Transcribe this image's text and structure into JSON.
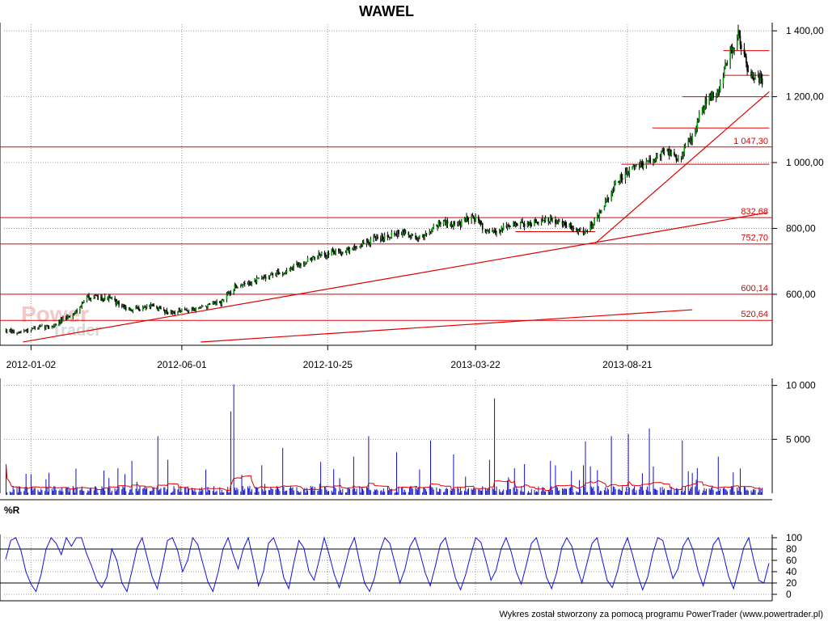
{
  "chart_data": [
    {
      "type": "candlestick",
      "title": "WAWEL",
      "x_labels": [
        "2012-01-02",
        "2012-06-01",
        "2012-10-25",
        "2013-03-22",
        "2013-08-21"
      ],
      "y_ticks": [
        600,
        800,
        1000,
        1200,
        1400
      ],
      "y_tick_labels": [
        "600,00",
        "800,00",
        "1 000,00",
        "1 200,00",
        "1 400,00"
      ],
      "ylim": [
        450,
        1420
      ],
      "grid": true,
      "price_path": [
        {
          "x": "2011-12-08",
          "y": 490
        },
        {
          "x": "2011-12-20",
          "y": 480
        },
        {
          "x": "2012-01-02",
          "y": 495
        },
        {
          "x": "2012-01-25",
          "y": 505
        },
        {
          "x": "2012-02-15",
          "y": 545
        },
        {
          "x": "2012-02-28",
          "y": 592
        },
        {
          "x": "2012-03-20",
          "y": 588
        },
        {
          "x": "2012-04-10",
          "y": 550
        },
        {
          "x": "2012-04-30",
          "y": 565
        },
        {
          "x": "2012-05-20",
          "y": 545
        },
        {
          "x": "2012-06-01",
          "y": 548
        },
        {
          "x": "2012-06-20",
          "y": 560
        },
        {
          "x": "2012-07-10",
          "y": 575
        },
        {
          "x": "2012-07-25",
          "y": 625
        },
        {
          "x": "2012-08-10",
          "y": 635
        },
        {
          "x": "2012-08-25",
          "y": 655
        },
        {
          "x": "2012-09-15",
          "y": 670
        },
        {
          "x": "2012-10-05",
          "y": 705
        },
        {
          "x": "2012-10-25",
          "y": 725
        },
        {
          "x": "2012-11-15",
          "y": 735
        },
        {
          "x": "2012-12-10",
          "y": 765
        },
        {
          "x": "2013-01-05",
          "y": 790
        },
        {
          "x": "2013-01-25",
          "y": 770
        },
        {
          "x": "2013-02-15",
          "y": 820
        },
        {
          "x": "2013-03-05",
          "y": 810
        },
        {
          "x": "2013-03-18",
          "y": 840
        },
        {
          "x": "2013-04-05",
          "y": 785
        },
        {
          "x": "2013-04-25",
          "y": 810
        },
        {
          "x": "2013-05-15",
          "y": 815
        },
        {
          "x": "2013-06-05",
          "y": 825
        },
        {
          "x": "2013-06-25",
          "y": 805
        },
        {
          "x": "2013-07-10",
          "y": 790
        },
        {
          "x": "2013-07-25",
          "y": 845
        },
        {
          "x": "2013-08-10",
          "y": 940
        },
        {
          "x": "2013-08-30",
          "y": 990
        },
        {
          "x": "2013-09-15",
          "y": 1005
        },
        {
          "x": "2013-09-28",
          "y": 1040
        },
        {
          "x": "2013-10-10",
          "y": 1010
        },
        {
          "x": "2013-10-25",
          "y": 1080
        },
        {
          "x": "2013-11-08",
          "y": 1190
        },
        {
          "x": "2013-11-20",
          "y": 1220
        },
        {
          "x": "2013-12-02",
          "y": 1330
        },
        {
          "x": "2013-12-10",
          "y": 1390
        },
        {
          "x": "2013-12-20",
          "y": 1280
        },
        {
          "x": "2014-01-05",
          "y": 1240
        }
      ],
      "support_resistance": [
        {
          "value": 1047.3,
          "label": "1 047,30"
        },
        {
          "value": 832.68,
          "label": "832,68"
        },
        {
          "value": 752.7,
          "label": "752,70"
        },
        {
          "value": 600.14,
          "label": "600,14"
        },
        {
          "value": 520.64,
          "label": "520,64"
        }
      ],
      "short_levels": [
        {
          "from": "2013-11-25",
          "to": "2014-01-10",
          "value": 1340
        },
        {
          "from": "2013-11-25",
          "to": "2014-01-10",
          "value": 1265
        },
        {
          "from": "2013-10-15",
          "to": "2014-01-10",
          "value": 1200
        },
        {
          "from": "2013-09-15",
          "to": "2014-01-10",
          "value": 1105
        },
        {
          "from": "2013-08-15",
          "to": "2014-01-10",
          "value": 995
        },
        {
          "from": "2013-05-01",
          "to": "2013-07-20",
          "value": 790
        }
      ],
      "trendlines": [
        {
          "from": {
            "x": "2011-12-25",
            "y": 455
          },
          "to": {
            "x": "2014-01-08",
            "y": 848
          }
        },
        {
          "from": {
            "x": "2012-06-20",
            "y": 455
          },
          "to": {
            "x": "2013-10-25",
            "y": 553
          }
        },
        {
          "from": {
            "x": "2013-07-20",
            "y": 755
          },
          "to": {
            "x": "2014-01-10",
            "y": 1215
          }
        }
      ],
      "watermark": [
        "Power",
        "Trader"
      ]
    },
    {
      "type": "bar",
      "name": "volume",
      "y_ticks": [
        5000,
        10000
      ],
      "y_tick_labels": [
        "5 000",
        "10 000"
      ],
      "ylim": [
        0,
        10500
      ],
      "grid": true,
      "spikes": [
        {
          "x": "2011-12-08",
          "value": 2700
        },
        {
          "x": "2011-12-28",
          "value": 1800
        },
        {
          "x": "2012-01-08",
          "value": 5200
        },
        {
          "x": "2012-01-20",
          "value": 1900
        },
        {
          "x": "2012-02-18",
          "value": 2800
        },
        {
          "x": "2012-03-15",
          "value": 2100
        },
        {
          "x": "2012-04-12",
          "value": 3000
        },
        {
          "x": "2012-05-08",
          "value": 5300
        },
        {
          "x": "2012-05-18",
          "value": 3100
        },
        {
          "x": "2012-06-25",
          "value": 2200
        },
        {
          "x": "2012-07-20",
          "value": 7600
        },
        {
          "x": "2012-07-23",
          "value": 10100
        },
        {
          "x": "2012-08-20",
          "value": 2600
        },
        {
          "x": "2012-09-10",
          "value": 4200
        },
        {
          "x": "2012-09-30",
          "value": 4000
        },
        {
          "x": "2012-10-18",
          "value": 2900
        },
        {
          "x": "2012-11-20",
          "value": 3400
        },
        {
          "x": "2012-12-05",
          "value": 5300
        },
        {
          "x": "2013-01-02",
          "value": 3800
        },
        {
          "x": "2013-02-05",
          "value": 4900
        },
        {
          "x": "2013-02-28",
          "value": 3600
        },
        {
          "x": "2013-03-10",
          "value": 5200
        },
        {
          "x": "2013-04-05",
          "value": 3100
        },
        {
          "x": "2013-04-10",
          "value": 8800
        },
        {
          "x": "2013-05-10",
          "value": 2700
        },
        {
          "x": "2013-06-05",
          "value": 3000
        },
        {
          "x": "2013-07-10",
          "value": 4800
        },
        {
          "x": "2013-08-05",
          "value": 5300
        },
        {
          "x": "2013-08-22",
          "value": 5500
        },
        {
          "x": "2013-09-12",
          "value": 6000
        },
        {
          "x": "2013-10-15",
          "value": 4900
        },
        {
          "x": "2013-10-20",
          "value": 3800
        },
        {
          "x": "2013-11-20",
          "value": 3400
        },
        {
          "x": "2013-12-12",
          "value": 2300
        },
        {
          "x": "2014-01-08",
          "value": 1300
        }
      ]
    },
    {
      "type": "line",
      "name": "%R",
      "label": "%R",
      "y_ticks": [
        0,
        20,
        40,
        60,
        80,
        100
      ],
      "y_tick_labels": [
        "0",
        "20",
        "40",
        "60",
        "80",
        "100"
      ],
      "ylim": [
        0,
        100
      ],
      "reference_lines": [
        20,
        80
      ],
      "values": [
        62,
        95,
        100,
        78,
        40,
        18,
        5,
        35,
        80,
        100,
        90,
        70,
        100,
        85,
        100,
        100,
        72,
        50,
        25,
        12,
        30,
        80,
        60,
        20,
        5,
        42,
        82,
        100,
        65,
        30,
        10,
        50,
        95,
        100,
        78,
        40,
        60,
        100,
        88,
        55,
        22,
        5,
        38,
        80,
        100,
        70,
        45,
        80,
        100,
        60,
        15,
        40,
        90,
        100,
        75,
        30,
        10,
        55,
        95,
        82,
        40,
        25,
        60,
        100,
        70,
        35,
        12,
        45,
        80,
        100,
        58,
        20,
        5,
        30,
        75,
        100,
        90,
        55,
        20,
        45,
        85,
        100,
        72,
        38,
        15,
        50,
        88,
        100,
        65,
        28,
        8,
        35,
        70,
        100,
        92,
        60,
        25,
        42,
        80,
        100,
        75,
        40,
        18,
        52,
        90,
        100,
        68,
        30,
        10,
        38,
        82,
        100,
        85,
        48,
        20,
        55,
        90,
        100,
        62,
        25,
        12,
        40,
        78,
        100,
        70,
        35,
        8,
        30,
        72,
        100,
        95,
        60,
        28,
        45,
        85,
        100,
        78,
        40,
        15,
        50,
        88,
        100,
        70,
        32,
        10,
        45,
        82,
        100,
        60,
        25,
        20,
        55
      ]
    }
  ],
  "footer": "Wykres został stworzony za pomocą programu PowerTrader (www.powertrader.pl)"
}
